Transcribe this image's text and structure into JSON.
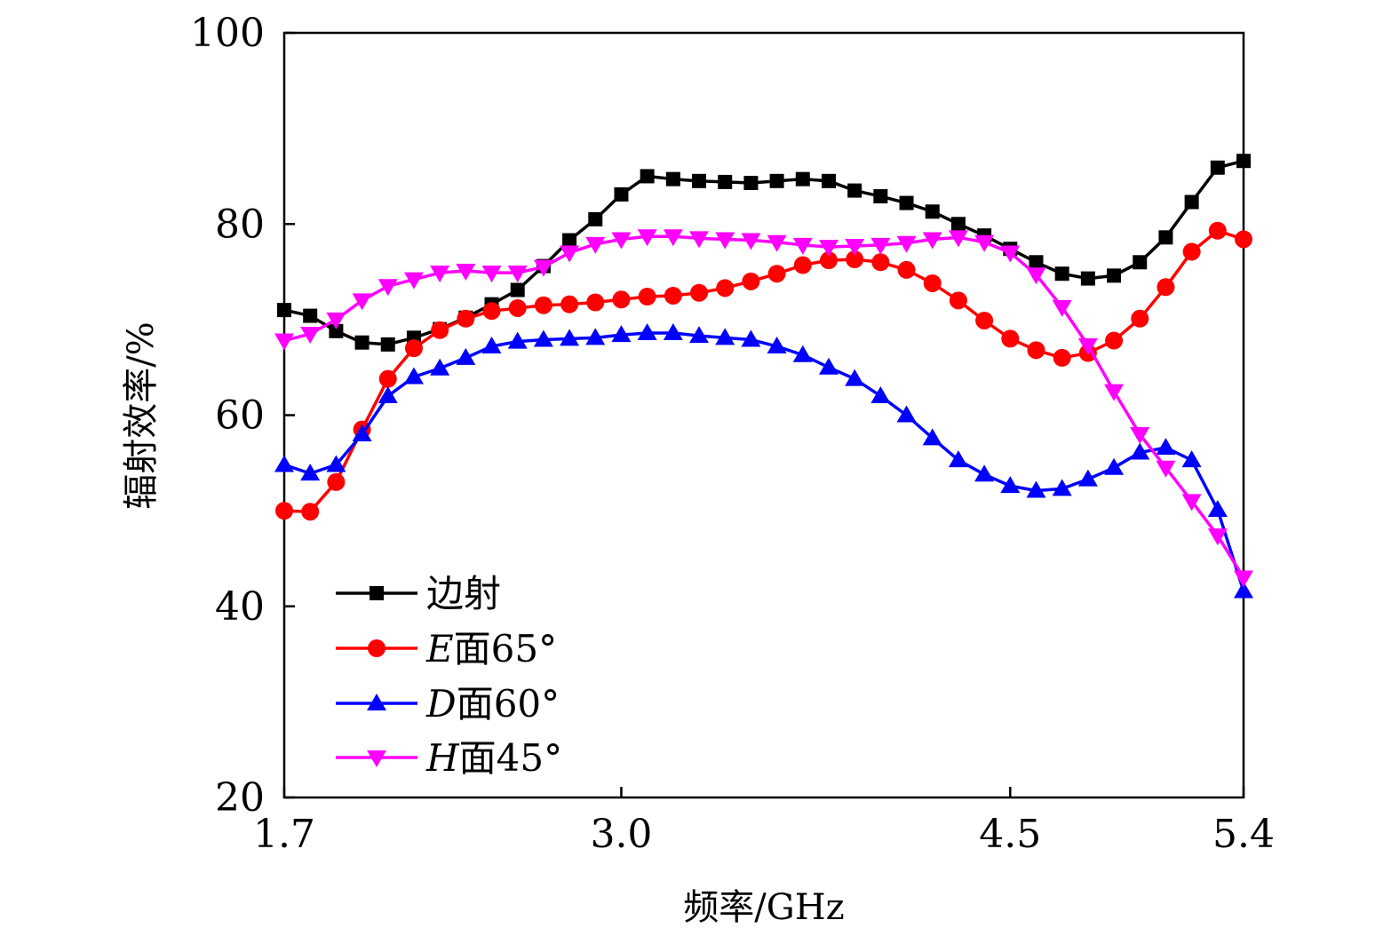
{
  "chart_data": {
    "type": "line",
    "title": "",
    "xlabel": "频率/GHz",
    "ylabel": "辐射效率/%",
    "xlim": [
      1.7,
      5.4
    ],
    "ylim": [
      20,
      100
    ],
    "xticks": [
      "1.7",
      "3.0",
      "4.5",
      "5.4"
    ],
    "yticks": [
      "20",
      "40",
      "60",
      "80",
      "100"
    ],
    "grid": false,
    "legend_position": "bottom-left",
    "x": [
      1.7,
      1.8,
      1.9,
      2.0,
      2.1,
      2.2,
      2.3,
      2.4,
      2.5,
      2.6,
      2.7,
      2.8,
      2.9,
      3.0,
      3.1,
      3.2,
      3.3,
      3.4,
      3.5,
      3.6,
      3.7,
      3.8,
      3.9,
      4.0,
      4.1,
      4.2,
      4.3,
      4.4,
      4.5,
      4.6,
      4.7,
      4.8,
      4.9,
      5.0,
      5.1,
      5.2,
      5.3,
      5.4
    ],
    "series": [
      {
        "name": "边射",
        "label_italic": "",
        "label_rest": "边射",
        "color": "#000000",
        "marker": "square",
        "values": [
          71.0,
          70.4,
          68.8,
          67.6,
          67.4,
          68.1,
          69.0,
          70.2,
          71.6,
          73.1,
          75.6,
          78.3,
          80.5,
          83.1,
          85.0,
          84.7,
          84.5,
          84.4,
          84.3,
          84.5,
          84.7,
          84.5,
          83.5,
          82.9,
          82.2,
          81.3,
          80.0,
          78.8,
          77.4,
          76.0,
          74.8,
          74.3,
          74.6,
          76.0,
          78.6,
          82.3,
          85.9,
          86.6
        ]
      },
      {
        "name": "E面65°",
        "label_italic": "E",
        "label_rest": "面65°",
        "color": "#ff0000",
        "marker": "circle",
        "values": [
          50.0,
          49.9,
          53.0,
          58.5,
          63.8,
          67.0,
          68.9,
          70.1,
          70.9,
          71.2,
          71.5,
          71.6,
          71.8,
          72.1,
          72.4,
          72.5,
          72.8,
          73.3,
          74.0,
          74.8,
          75.7,
          76.2,
          76.3,
          76.0,
          75.2,
          73.8,
          72.0,
          69.9,
          68.0,
          66.8,
          66.0,
          66.5,
          67.8,
          70.1,
          73.4,
          77.1,
          79.3,
          78.4
        ]
      },
      {
        "name": "D面60°",
        "label_italic": "D",
        "label_rest": "面60°",
        "color": "#0000ff",
        "marker": "triangle-up",
        "values": [
          54.8,
          53.9,
          54.8,
          58.0,
          62.0,
          64.0,
          64.9,
          66.0,
          67.2,
          67.7,
          67.9,
          68.0,
          68.1,
          68.4,
          68.6,
          68.6,
          68.3,
          68.1,
          67.9,
          67.2,
          66.3,
          65.0,
          63.8,
          62.0,
          60.0,
          57.6,
          55.3,
          53.8,
          52.6,
          52.1,
          52.3,
          53.3,
          54.5,
          56.1,
          56.6,
          55.3,
          50.1,
          41.6
        ]
      },
      {
        "name": "H面45°",
        "label_italic": "H",
        "label_rest": "面45°",
        "color": "#ff00ff",
        "marker": "triangle-down",
        "values": [
          67.8,
          68.5,
          70.0,
          72.0,
          73.5,
          74.2,
          74.9,
          75.1,
          74.9,
          74.9,
          75.5,
          77.0,
          77.9,
          78.4,
          78.7,
          78.7,
          78.5,
          78.4,
          78.3,
          78.1,
          77.8,
          77.6,
          77.7,
          77.8,
          78.0,
          78.4,
          78.6,
          78.1,
          77.0,
          74.7,
          71.3,
          67.3,
          62.5,
          58.0,
          54.5,
          51.0,
          47.4,
          43.0
        ]
      }
    ]
  }
}
